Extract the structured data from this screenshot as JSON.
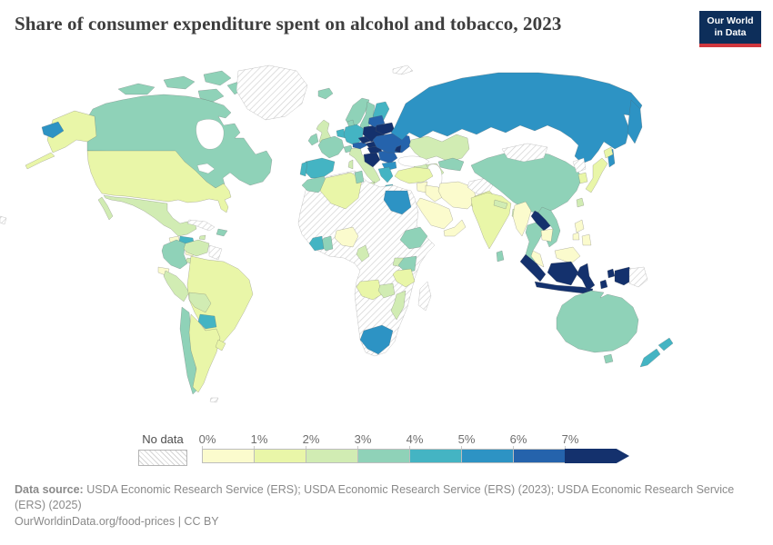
{
  "header": {
    "title": "Share of consumer expenditure spent on alcohol and tobacco, 2023",
    "logo": {
      "line1": "Our World",
      "line2": "in Data",
      "bg_color": "#0d2e5a",
      "accent_color": "#d0373e"
    }
  },
  "legend": {
    "no_data_label": "No data",
    "ticks": [
      "0%",
      "1%",
      "2%",
      "3%",
      "4%",
      "5%",
      "6%",
      "7%"
    ]
  },
  "footer": {
    "data_source_label": "Data source:",
    "data_source_text": " USDA Economic Research Service (ERS); USDA Economic Research Service (ERS) (2023); USDA Economic Research Service (ERS) (2025)",
    "attribution": "OurWorldinData.org/food-prices | CC BY"
  },
  "chart_data": {
    "type": "choropleth",
    "title": "Share of consumer expenditure spent on alcohol and tobacco, 2023",
    "unit": "% of consumer expenditure",
    "legend_ticks": [
      "0%",
      "1%",
      "2%",
      "3%",
      "4%",
      "5%",
      "6%",
      "7%"
    ],
    "scale_bands": [
      {
        "range": "0-1%",
        "color": "#fbfbcd"
      },
      {
        "range": "1-2%",
        "color": "#e9f6a8"
      },
      {
        "range": "2-3%",
        "color": "#d1ecb3"
      },
      {
        "range": "3-4%",
        "color": "#8fd2b8"
      },
      {
        "range": "4-5%",
        "color": "#44b4c3"
      },
      {
        "range": "5-6%",
        "color": "#2d93c4"
      },
      {
        "range": "6-7%",
        "color": "#2563ac"
      },
      {
        "range": "7%+",
        "color": "#14316d"
      }
    ],
    "no_data": {
      "label": "No data",
      "fill": "hatched"
    },
    "regions": {
      "canada": "3-4%",
      "greenland": "No data",
      "alaska": "1-2%",
      "chukotka": "5-6%",
      "usa": "1-2%",
      "mexico": "2-3%",
      "guatemala": "0-1%",
      "honduras": "4-5%",
      "nicaragua": "0-1%",
      "costa-rica-panama": "2-3%",
      "cuba": "No data",
      "jamaica": "2-3%",
      "hispaniola": "3-4%",
      "colombia": "3-4%",
      "venezuela": "2-3%",
      "guyana-suriname": "No data",
      "ecuador": "0-1%",
      "peru": "2-3%",
      "brazil": "1-2%",
      "bolivia": "2-3%",
      "paraguay": "4-5%",
      "chile": "3-4%",
      "argentina": "1-2%",
      "uruguay": "1-2%",
      "falkland-islands": "No data",
      "iceland": "3-4%",
      "norway": "3-4%",
      "sweden": "3-4%",
      "finland": "4-5%",
      "denmark": "3-4%",
      "united-kingdom": "2-3%",
      "ireland": "3-4%",
      "benelux": "4-5%",
      "germany": "4-5%",
      "france": "3-4%",
      "spain": "4-5%",
      "portugal": "4-5%",
      "switzerland": "3-4%",
      "italy": "2-3%",
      "austria": "6-7%",
      "czechia": "7%+",
      "poland": "7%+",
      "slovakia": "7%+",
      "hungary": "7%+",
      "balkans": "7%+",
      "romania": "6-7%",
      "bulgaria": "5-6%",
      "greece": "4-5%",
      "baltics": "6-7%",
      "belarus": "7%+",
      "ukraine": "6-7%",
      "moldova": "7%+",
      "russia": "5-6%",
      "svalbard": "No data",
      "kazakhstan": "2-3%",
      "uzbekistan": "3-4%",
      "turkmenistan": "2-3%",
      "caucasus": "2-3%",
      "turkey": "1-2%",
      "levant": "0-1%",
      "iraq": "0-1%",
      "iran": "0-1%",
      "afghanistan": "No data",
      "pakistan": "1-2%",
      "saudi-arabia": "0-1%",
      "yemen-oman": "0-1%",
      "india": "1-2%",
      "nepal": "2-3%",
      "bangladesh": "2-3%",
      "sri-lanka": "3-4%",
      "china": "3-4%",
      "mongolia": "No data",
      "north-korea": "No data",
      "south-korea": "1-2%",
      "japan": "1-2%",
      "taiwan": "2-3%",
      "myanmar": "0-1%",
      "thailand": "3-4%",
      "laos": "7%+",
      "vietnam": "3-4%",
      "cambodia": "0-1%",
      "malaysia": "0-1%",
      "indonesia": "7%+",
      "philippines": "0-1%",
      "papua-new-guinea": "No data",
      "africa-nodata": "No data",
      "morocco": "3-4%",
      "algeria": "1-2%",
      "tunisia": "3-4%",
      "egypt": "5-6%",
      "nigeria": "0-1%",
      "ghana": "3-4%",
      "cote-divoire": "4-5%",
      "cameroon": "2-3%",
      "ethiopia": "3-4%",
      "kenya": "3-4%",
      "uganda": "2-3%",
      "tanzania": "1-2%",
      "angola": "1-2%",
      "zambia": "2-3%",
      "mozambique": "2-3%",
      "south-africa": "5-6%",
      "madagascar": "No data",
      "australia": "3-4%",
      "new-zealand": "4-5%",
      "pacific-sliver": "No data"
    }
  }
}
